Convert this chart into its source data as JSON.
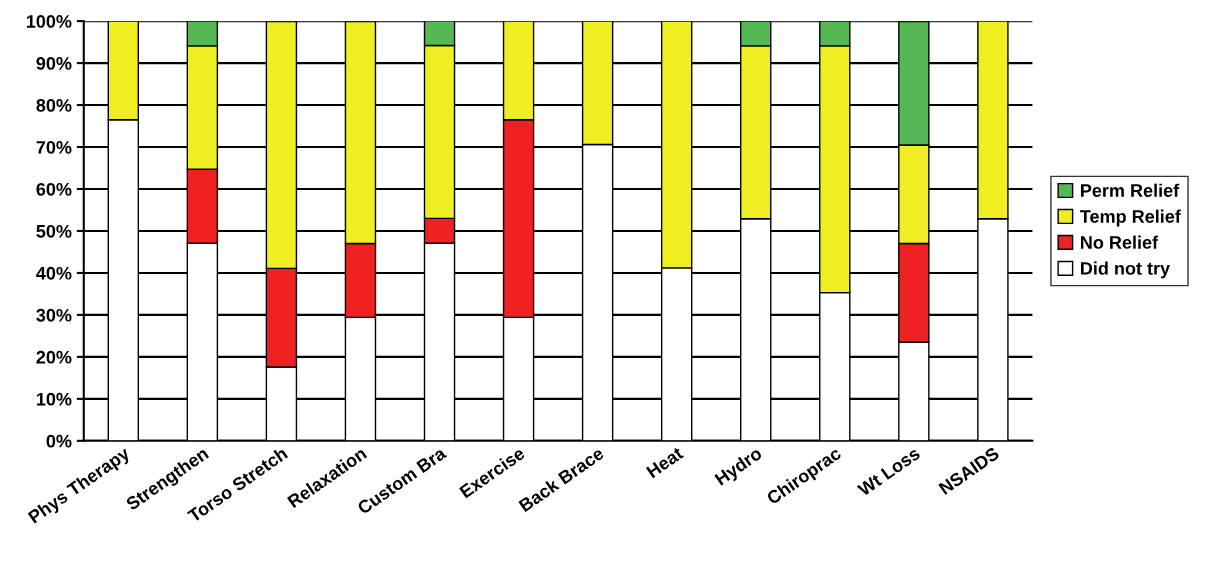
{
  "chart_data": {
    "type": "bar",
    "stacked": true,
    "categories": [
      "Phys Therapy",
      "Strengthen",
      "Torso Stretch",
      "Relaxation",
      "Custom Bra",
      "Exercise",
      "Back Brace",
      "Heat",
      "Hydro",
      "Chiroprac",
      "Wt Loss",
      "NSAIDS"
    ],
    "series": [
      {
        "name": "Did not try",
        "color": "#ffffff",
        "values": [
          76.5,
          47.1,
          17.6,
          29.4,
          47.1,
          29.4,
          70.6,
          41.2,
          52.9,
          35.3,
          23.5,
          52.9
        ]
      },
      {
        "name": "No Relief",
        "color": "#ee2222",
        "values": [
          null,
          17.6,
          23.5,
          17.6,
          5.9,
          47.1,
          null,
          null,
          null,
          null,
          23.5,
          null
        ]
      },
      {
        "name": "Temp Relief",
        "color": "#eeee22",
        "values": [
          23.5,
          29.4,
          58.8,
          52.9,
          41.2,
          23.5,
          29.4,
          58.8,
          41.2,
          58.8,
          23.5,
          47.1
        ]
      },
      {
        "name": "Perm Relief",
        "color": "#55b855",
        "values": [
          null,
          5.9,
          null,
          null,
          5.9,
          null,
          null,
          null,
          5.9,
          5.9,
          29.4,
          null
        ]
      }
    ],
    "ylim": [
      0,
      100
    ],
    "yticks": [
      {
        "value": 0,
        "label": "0%"
      },
      {
        "value": 10,
        "label": "10%"
      },
      {
        "value": 20,
        "label": "20%"
      },
      {
        "value": 30,
        "label": "30%"
      },
      {
        "value": 40,
        "label": "40%"
      },
      {
        "value": 50,
        "label": "50%"
      },
      {
        "value": 60,
        "label": "60%"
      },
      {
        "value": 70,
        "label": "70%"
      },
      {
        "value": 80,
        "label": "80%"
      },
      {
        "value": 90,
        "label": "90%"
      },
      {
        "value": 100,
        "label": "100%"
      }
    ],
    "grid": "y",
    "legend": "right"
  }
}
